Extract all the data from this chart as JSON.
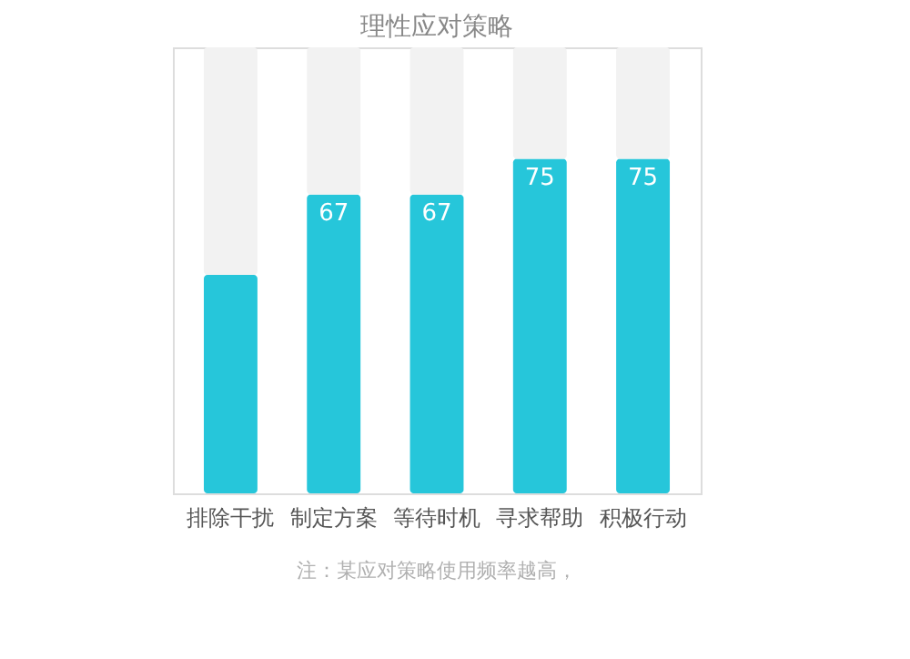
{
  "chart_data": {
    "type": "bar",
    "title": "理性应对策略",
    "stacked": true,
    "categories": [
      "排除干扰",
      "制定方案",
      "等待时机",
      "寻求帮助",
      "积极行动"
    ],
    "ylim": [
      0,
      100
    ],
    "series": [
      {
        "color": "#26c6da",
        "values": [
          49,
          67,
          67,
          75,
          75
        ],
        "value_labels": [
          null,
          "67",
          "67",
          "75",
          "75"
        ]
      },
      {
        "color": "#f2f2f2",
        "values": [
          51,
          33,
          33,
          25,
          25
        ]
      }
    ],
    "grid": false,
    "tick_labels": "x",
    "annotations": [
      "注：某应对策略使用频率越高，"
    ]
  }
}
